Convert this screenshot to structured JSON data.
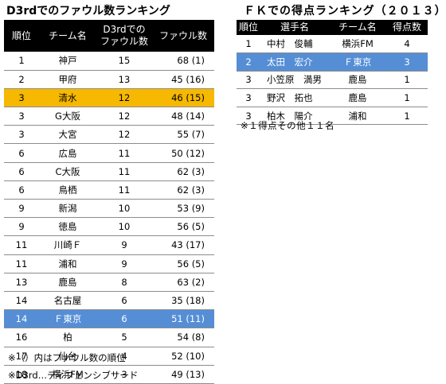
{
  "foul_ranking": {
    "title": "D3rdでのファウル数ランキング",
    "headers": {
      "rank": "順位",
      "team": "チーム名",
      "d3rd_line1": "D3rdでの",
      "d3rd_line2": "ファウル数",
      "fouls": "ファウル数"
    },
    "rows": [
      {
        "rank": "1",
        "team": "神戸",
        "d3rd": "15",
        "fouls": "68 (1)"
      },
      {
        "rank": "2",
        "team": "甲府",
        "d3rd": "13",
        "fouls": "45 (16)"
      },
      {
        "rank": "3",
        "team": "清水",
        "d3rd": "12",
        "fouls": "46 (15)"
      },
      {
        "rank": "3",
        "team": "G大阪",
        "d3rd": "12",
        "fouls": "48 (14)"
      },
      {
        "rank": "3",
        "team": "大宮",
        "d3rd": "12",
        "fouls": "55 (7)"
      },
      {
        "rank": "6",
        "team": "広島",
        "d3rd": "11",
        "fouls": "50 (12)"
      },
      {
        "rank": "6",
        "team": "C大阪",
        "d3rd": "11",
        "fouls": "62 (3)"
      },
      {
        "rank": "6",
        "team": "鳥栖",
        "d3rd": "11",
        "fouls": "62 (3)"
      },
      {
        "rank": "9",
        "team": "新潟",
        "d3rd": "10",
        "fouls": "53 (9)"
      },
      {
        "rank": "9",
        "team": "徳島",
        "d3rd": "10",
        "fouls": "56 (5)"
      },
      {
        "rank": "11",
        "team": "川崎Ｆ",
        "d3rd": "9",
        "fouls": "43 (17)"
      },
      {
        "rank": "11",
        "team": "浦和",
        "d3rd": "9",
        "fouls": "56 (5)"
      },
      {
        "rank": "13",
        "team": "鹿島",
        "d3rd": "8",
        "fouls": "63 (2)"
      },
      {
        "rank": "14",
        "team": "名古屋",
        "d3rd": "6",
        "fouls": "35 (18)"
      },
      {
        "rank": "14",
        "team": "Ｆ東京",
        "d3rd": "6",
        "fouls": "51 (11)"
      },
      {
        "rank": "16",
        "team": "柏",
        "d3rd": "5",
        "fouls": "54 (8)"
      },
      {
        "rank": "17",
        "team": "仙台",
        "d3rd": "4",
        "fouls": "52 (10)"
      },
      {
        "rank": "18",
        "team": "横浜FM",
        "d3rd": "3",
        "fouls": "49 (13)"
      }
    ],
    "highlight_orange_index": 2,
    "highlight_blue_index": 14,
    "highlight_colors": {
      "orange": "#f6b800",
      "blue": "#558ed5"
    },
    "note_parenthesis": "※（）内はファウル数の順位",
    "note_d3rd": "※D3rd…ディフェンシブサード"
  },
  "fk_ranking": {
    "title": "ＦＫでの得点ランキング（２０１３）",
    "headers": {
      "rank": "順位",
      "player": "選手名",
      "team": "チーム名",
      "goals": "得点数"
    },
    "rows": [
      {
        "rank": "1",
        "player": "中村　俊輔",
        "team": "横浜FM",
        "goals": "4"
      },
      {
        "rank": "2",
        "player": "太田　宏介",
        "team": "Ｆ東京",
        "goals": "3"
      },
      {
        "rank": "3",
        "player": "小笠原　満男",
        "team": "鹿島",
        "goals": "1"
      },
      {
        "rank": "3",
        "player": "野沢　拓也",
        "team": "鹿島",
        "goals": "1"
      },
      {
        "rank": "3",
        "player": "柏木　陽介",
        "team": "浦和",
        "goals": "1"
      }
    ],
    "highlight_blue_index": 1,
    "note_others": "※１得点その他１１名"
  }
}
